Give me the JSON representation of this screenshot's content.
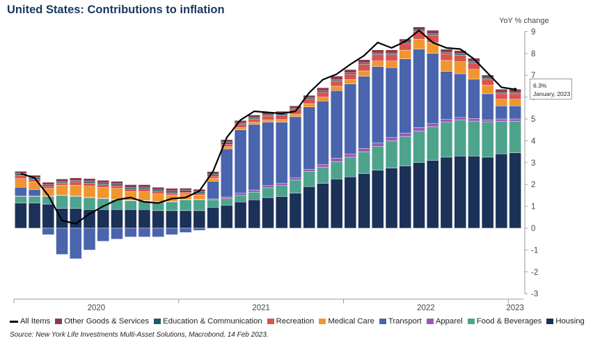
{
  "title": "United States: Contributions to inflation",
  "y_unit": "YoY % change",
  "legend": [
    {
      "name": "All Items",
      "type": "line",
      "color": "#000000"
    },
    {
      "name": "Other Goods & Services",
      "type": "bar",
      "color": "#8b3a4b"
    },
    {
      "name": "Education & Communication",
      "type": "bar",
      "color": "#1d5a66"
    },
    {
      "name": "Recreation",
      "type": "bar",
      "color": "#d9534f"
    },
    {
      "name": "Medical Care",
      "type": "bar",
      "color": "#f0962f"
    },
    {
      "name": "Transport",
      "type": "bar",
      "color": "#4a64ad"
    },
    {
      "name": "Apparel",
      "type": "bar",
      "color": "#9b59b6"
    },
    {
      "name": "Food & Beverages",
      "type": "bar",
      "color": "#4ea38d"
    },
    {
      "name": "Housing",
      "type": "bar",
      "color": "#1b3157"
    }
  ],
  "source": "Source: New York Life Investments Multi-Asset Solutions, Macrobond, 14 Feb 2023.",
  "tooltip": {
    "value": "6.3%",
    "date": "January, 2023"
  },
  "chart_data": {
    "type": "bar",
    "stacked": true,
    "title": "United States: Contributions to inflation",
    "ylabel": "YoY % change",
    "ylim": [
      -3,
      9
    ],
    "yticks": [
      "-3",
      "-2",
      "-1",
      "0",
      "1",
      "2",
      "3",
      "4",
      "5",
      "6",
      "7",
      "8",
      "9"
    ],
    "x_year_labels": [
      "2020",
      "2021",
      "2022",
      "2023"
    ],
    "categories": [
      "Jan 2020",
      "Feb 2020",
      "Mar 2020",
      "Apr 2020",
      "May 2020",
      "Jun 2020",
      "Jul 2020",
      "Aug 2020",
      "Sep 2020",
      "Oct 2020",
      "Nov 2020",
      "Dec 2020",
      "Jan 2021",
      "Feb 2021",
      "Mar 2021",
      "Apr 2021",
      "May 2021",
      "Jun 2021",
      "Jul 2021",
      "Aug 2021",
      "Sep 2021",
      "Oct 2021",
      "Nov 2021",
      "Dec 2021",
      "Jan 2022",
      "Feb 2022",
      "Mar 2022",
      "Apr 2022",
      "May 2022",
      "Jun 2022",
      "Jul 2022",
      "Aug 2022",
      "Sep 2022",
      "Oct 2022",
      "Nov 2022",
      "Dec 2022",
      "Jan 2023"
    ],
    "series": [
      {
        "name": "Housing",
        "color": "#1b3157",
        "values": [
          1.15,
          1.15,
          1.1,
          0.9,
          0.9,
          0.85,
          0.85,
          0.85,
          0.85,
          0.85,
          0.8,
          0.8,
          0.8,
          0.8,
          0.95,
          1.05,
          1.2,
          1.3,
          1.4,
          1.45,
          1.6,
          1.9,
          2.05,
          2.25,
          2.35,
          2.5,
          2.65,
          2.75,
          2.85,
          3.0,
          3.1,
          3.25,
          3.3,
          3.3,
          3.25,
          3.4,
          3.45
        ]
      },
      {
        "name": "Food & Beverages",
        "color": "#4ea38d",
        "values": [
          0.3,
          0.3,
          0.35,
          0.6,
          0.55,
          0.55,
          0.5,
          0.45,
          0.4,
          0.4,
          0.4,
          0.4,
          0.5,
          0.5,
          0.35,
          0.3,
          0.3,
          0.35,
          0.45,
          0.5,
          0.6,
          0.7,
          0.75,
          0.8,
          0.9,
          1.0,
          1.1,
          1.25,
          1.35,
          1.45,
          1.55,
          1.6,
          1.65,
          1.6,
          1.6,
          1.5,
          1.45
        ]
      },
      {
        "name": "Apparel",
        "color": "#9b59b6",
        "values": [
          0.02,
          0.02,
          0.02,
          0.02,
          0.02,
          0.02,
          0.02,
          0.02,
          0.02,
          0.02,
          0.02,
          0.02,
          0.02,
          0.02,
          0.04,
          0.08,
          0.1,
          0.1,
          0.1,
          0.1,
          0.1,
          0.1,
          0.12,
          0.15,
          0.15,
          0.15,
          0.15,
          0.15,
          0.15,
          0.15,
          0.15,
          0.13,
          0.12,
          0.12,
          0.1,
          0.1,
          0.1
        ]
      },
      {
        "name": "Transport",
        "color": "#4a64ad",
        "values": [
          0.4,
          0.3,
          -0.3,
          -1.2,
          -1.4,
          -1.0,
          -0.6,
          -0.5,
          -0.4,
          -0.4,
          -0.4,
          -0.3,
          -0.2,
          -0.1,
          0.8,
          2.2,
          2.9,
          3.0,
          2.9,
          2.8,
          2.8,
          2.85,
          2.9,
          3.1,
          3.2,
          3.3,
          3.5,
          3.2,
          3.4,
          3.6,
          3.2,
          2.2,
          2.0,
          1.8,
          1.2,
          0.6,
          0.6
        ]
      },
      {
        "name": "Medical Care",
        "color": "#f0962f",
        "values": [
          0.4,
          0.35,
          0.35,
          0.45,
          0.5,
          0.5,
          0.5,
          0.5,
          0.4,
          0.4,
          0.35,
          0.3,
          0.25,
          0.2,
          0.15,
          0.1,
          0.1,
          0.1,
          0.1,
          0.12,
          0.12,
          0.15,
          0.18,
          0.2,
          0.2,
          0.25,
          0.25,
          0.3,
          0.4,
          0.45,
          0.5,
          0.5,
          0.55,
          0.45,
          0.4,
          0.3,
          0.3
        ]
      },
      {
        "name": "Recreation",
        "color": "#d9534f",
        "values": [
          0.15,
          0.12,
          0.1,
          0.1,
          0.15,
          0.15,
          0.12,
          0.12,
          0.12,
          0.12,
          0.1,
          0.1,
          0.08,
          0.08,
          0.1,
          0.12,
          0.15,
          0.15,
          0.18,
          0.2,
          0.2,
          0.2,
          0.22,
          0.25,
          0.25,
          0.3,
          0.3,
          0.3,
          0.3,
          0.35,
          0.35,
          0.3,
          0.3,
          0.3,
          0.25,
          0.25,
          0.25
        ]
      },
      {
        "name": "Education & Communication",
        "color": "#1d5a66",
        "values": [
          0.08,
          0.06,
          0.06,
          0.06,
          0.06,
          0.08,
          0.08,
          0.08,
          0.08,
          0.08,
          0.08,
          0.08,
          0.08,
          0.08,
          0.08,
          0.08,
          0.06,
          0.06,
          0.06,
          0.06,
          0.06,
          0.06,
          0.06,
          0.06,
          0.06,
          0.06,
          0.06,
          0.06,
          0.06,
          0.06,
          0.06,
          0.06,
          0.06,
          0.06,
          0.06,
          0.06,
          0.06
        ]
      },
      {
        "name": "Other Goods & Services",
        "color": "#8b3a4b",
        "values": [
          0.1,
          0.12,
          0.12,
          0.12,
          0.12,
          0.12,
          0.12,
          0.12,
          0.12,
          0.12,
          0.12,
          0.12,
          0.1,
          0.1,
          0.12,
          0.12,
          0.12,
          0.12,
          0.12,
          0.12,
          0.12,
          0.12,
          0.15,
          0.15,
          0.15,
          0.15,
          0.15,
          0.15,
          0.15,
          0.15,
          0.15,
          0.15,
          0.15,
          0.15,
          0.15,
          0.15,
          0.15
        ]
      }
    ],
    "all_items": [
      2.5,
      2.3,
      1.5,
      0.35,
      0.2,
      0.65,
      1.0,
      1.3,
      1.4,
      1.2,
      1.15,
      1.35,
      1.4,
      1.7,
      2.6,
      4.15,
      4.95,
      5.35,
      5.3,
      5.25,
      5.35,
      6.2,
      6.8,
      7.05,
      7.5,
      7.9,
      8.5,
      8.25,
      8.55,
      9.05,
      8.5,
      8.25,
      8.2,
      7.75,
      7.1,
      6.45,
      6.35
    ]
  }
}
